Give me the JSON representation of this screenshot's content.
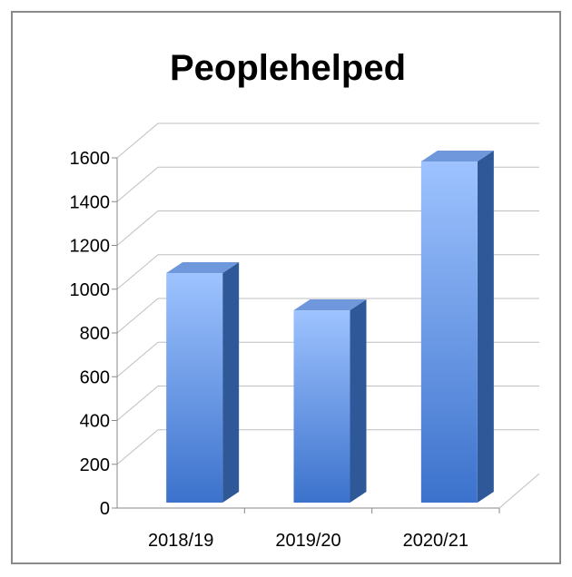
{
  "chart_data": {
    "type": "bar",
    "title": "People\u001fhelped\u001f",
    "xlabel": "",
    "ylabel": "",
    "categories": [
      "2018/19\u001f",
      "2019/20\u001f",
      "2020/21\u001f"
    ],
    "values": [
      1090,
      920,
      1600
    ],
    "yticks": [
      "0\u001f",
      "200\u001f",
      "400\u001f",
      "600\u001f",
      "800\u001f",
      "1000\u001f",
      "1200\u001f",
      "1400\u001f",
      "1600\u001f"
    ],
    "ylim": [
      0,
      1600
    ],
    "grid": true,
    "legend": "none",
    "style": "3d-column",
    "colors": {
      "bar_front_top": "#9ec3ff",
      "bar_front_bottom": "#3c72cc",
      "bar_side": "#2f5899",
      "bar_top": "#6f97dc",
      "gridline": "#bfbfbf",
      "axis": "#888888"
    }
  }
}
